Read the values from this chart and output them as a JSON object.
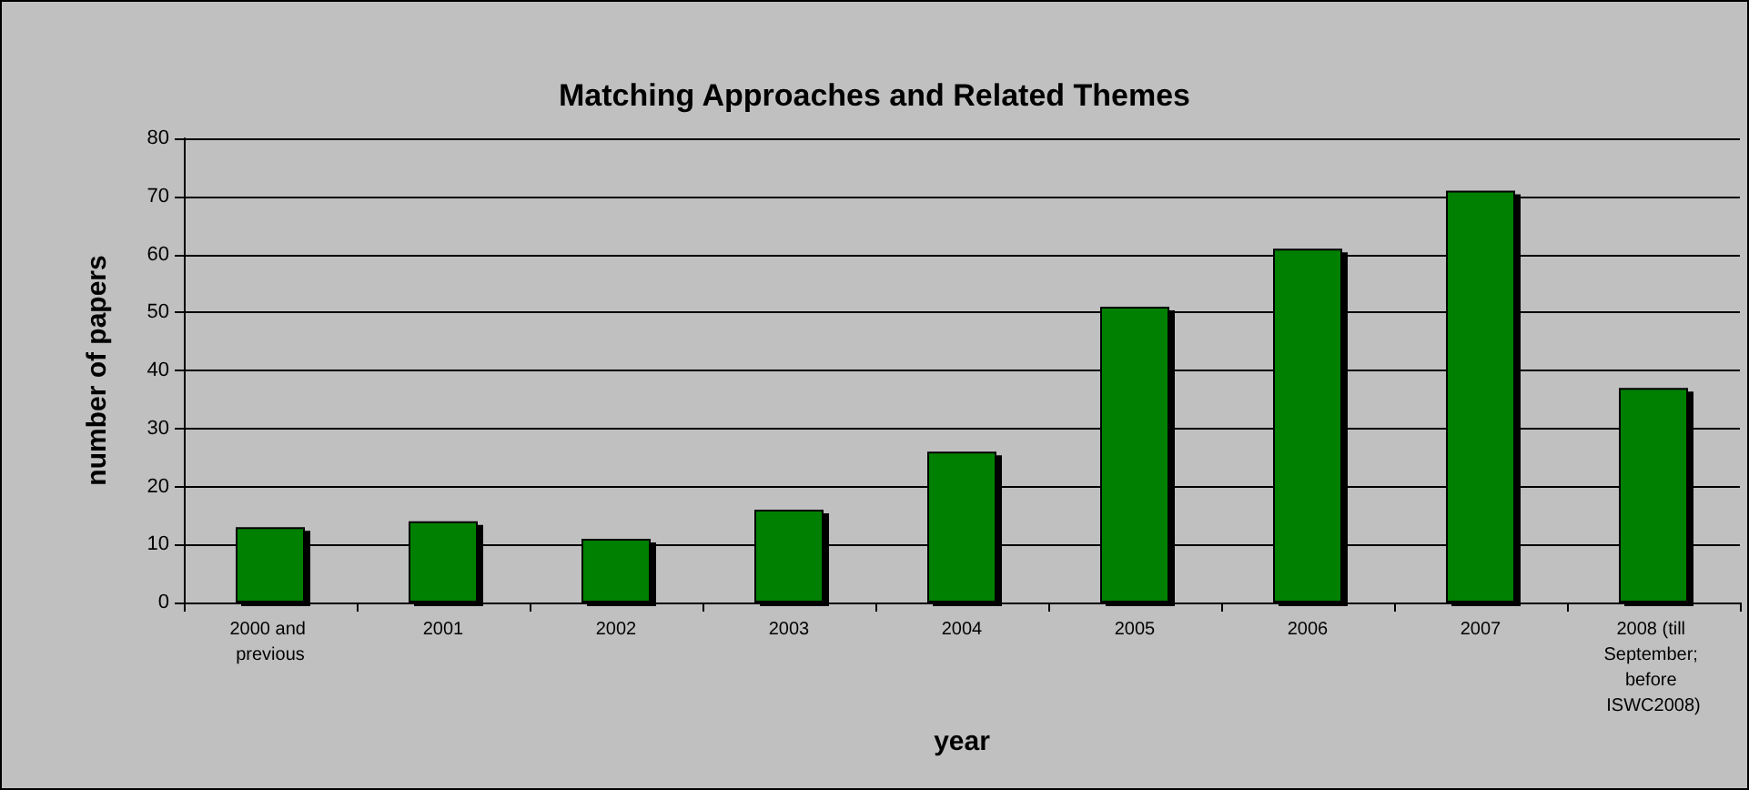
{
  "chart_data": {
    "type": "bar",
    "title": "Matching Approaches and Related Themes",
    "xlabel": "year",
    "ylabel": "number of papers",
    "categories": [
      "2000 and previous",
      "2001",
      "2002",
      "2003",
      "2004",
      "2005",
      "2006",
      "2007",
      "2008 (till September; before ISWC2008)"
    ],
    "values": [
      13,
      14,
      11,
      16,
      26,
      51,
      61,
      71,
      37
    ],
    "color": "#008000",
    "ylim": [
      0,
      80
    ],
    "yticks": [
      0,
      10,
      20,
      30,
      40,
      50,
      60,
      70,
      80
    ],
    "grid": "y"
  }
}
